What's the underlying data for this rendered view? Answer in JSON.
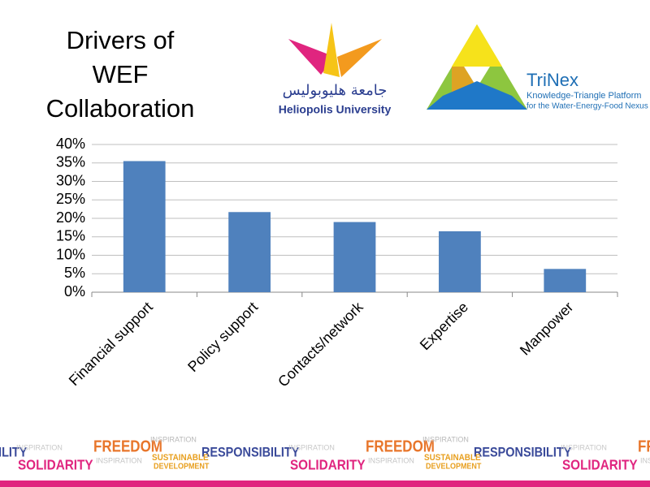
{
  "slide": {
    "title_lines": [
      "Drivers of",
      "WEF",
      "Collaboration"
    ],
    "logo_left": {
      "arabic": "جامعة هليوبوليس",
      "name": "Heliopolis University"
    },
    "logo_right": {
      "name": "TriNex",
      "line1": "Knowledge-Triangle Platform",
      "line2": "for the Water-Energy-Food Nexus"
    },
    "footer_words": [
      "FREEDOM",
      "RESPONSIBILITY",
      "SOLIDARITY",
      "SUSTAINABLE",
      "DEVELOPMENT",
      "INSPIRATION"
    ]
  },
  "chart_data": {
    "type": "bar",
    "categories": [
      "Financial support",
      "Policy support",
      "Contacts/network",
      "Expertise",
      "Manpower"
    ],
    "values": [
      35.5,
      21.7,
      19,
      16.5,
      6.3
    ],
    "color": "#4f81bd",
    "ylim": [
      0,
      40
    ],
    "yticks": [
      {
        "value": 0,
        "label": "0%"
      },
      {
        "value": 5,
        "label": "5%"
      },
      {
        "value": 10,
        "label": "10%"
      },
      {
        "value": 15,
        "label": "15%"
      },
      {
        "value": 20,
        "label": "20%"
      },
      {
        "value": 25,
        "label": "25%"
      },
      {
        "value": 30,
        "label": "30%"
      },
      {
        "value": 35,
        "label": "35%"
      },
      {
        "value": 40,
        "label": "40%"
      }
    ],
    "grid": true
  }
}
